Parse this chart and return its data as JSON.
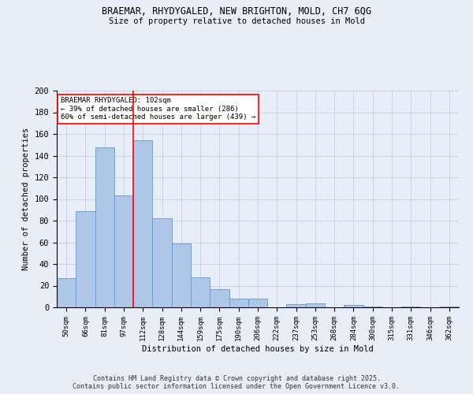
{
  "title1": "BRAEMAR, RHYDYGALED, NEW BRIGHTON, MOLD, CH7 6QG",
  "title2": "Size of property relative to detached houses in Mold",
  "xlabel": "Distribution of detached houses by size in Mold",
  "ylabel": "Number of detached properties",
  "categories": [
    "50sqm",
    "66sqm",
    "81sqm",
    "97sqm",
    "112sqm",
    "128sqm",
    "144sqm",
    "159sqm",
    "175sqm",
    "190sqm",
    "206sqm",
    "222sqm",
    "237sqm",
    "253sqm",
    "268sqm",
    "284sqm",
    "300sqm",
    "315sqm",
    "331sqm",
    "346sqm",
    "362sqm"
  ],
  "values": [
    27,
    89,
    148,
    103,
    154,
    82,
    59,
    28,
    17,
    8,
    8,
    0,
    3,
    4,
    0,
    2,
    1,
    0,
    1,
    0,
    1
  ],
  "bar_color": "#aec6e8",
  "bar_edge_color": "#5b9bd5",
  "vline_x": 3.5,
  "vline_color": "red",
  "annotation_title": "BRAEMAR RHYDYGALED: 102sqm",
  "annotation_line1": "← 39% of detached houses are smaller (286)",
  "annotation_line2": "60% of semi-detached houses are larger (439) →",
  "annotation_box_color": "white",
  "annotation_box_edge": "red",
  "ylim": [
    0,
    200
  ],
  "yticks": [
    0,
    20,
    40,
    60,
    80,
    100,
    120,
    140,
    160,
    180,
    200
  ],
  "footer1": "Contains HM Land Registry data © Crown copyright and database right 2025.",
  "footer2": "Contains public sector information licensed under the Open Government Licence v3.0.",
  "bg_color": "#e8eef8",
  "grid_color": "#c8d0e8"
}
